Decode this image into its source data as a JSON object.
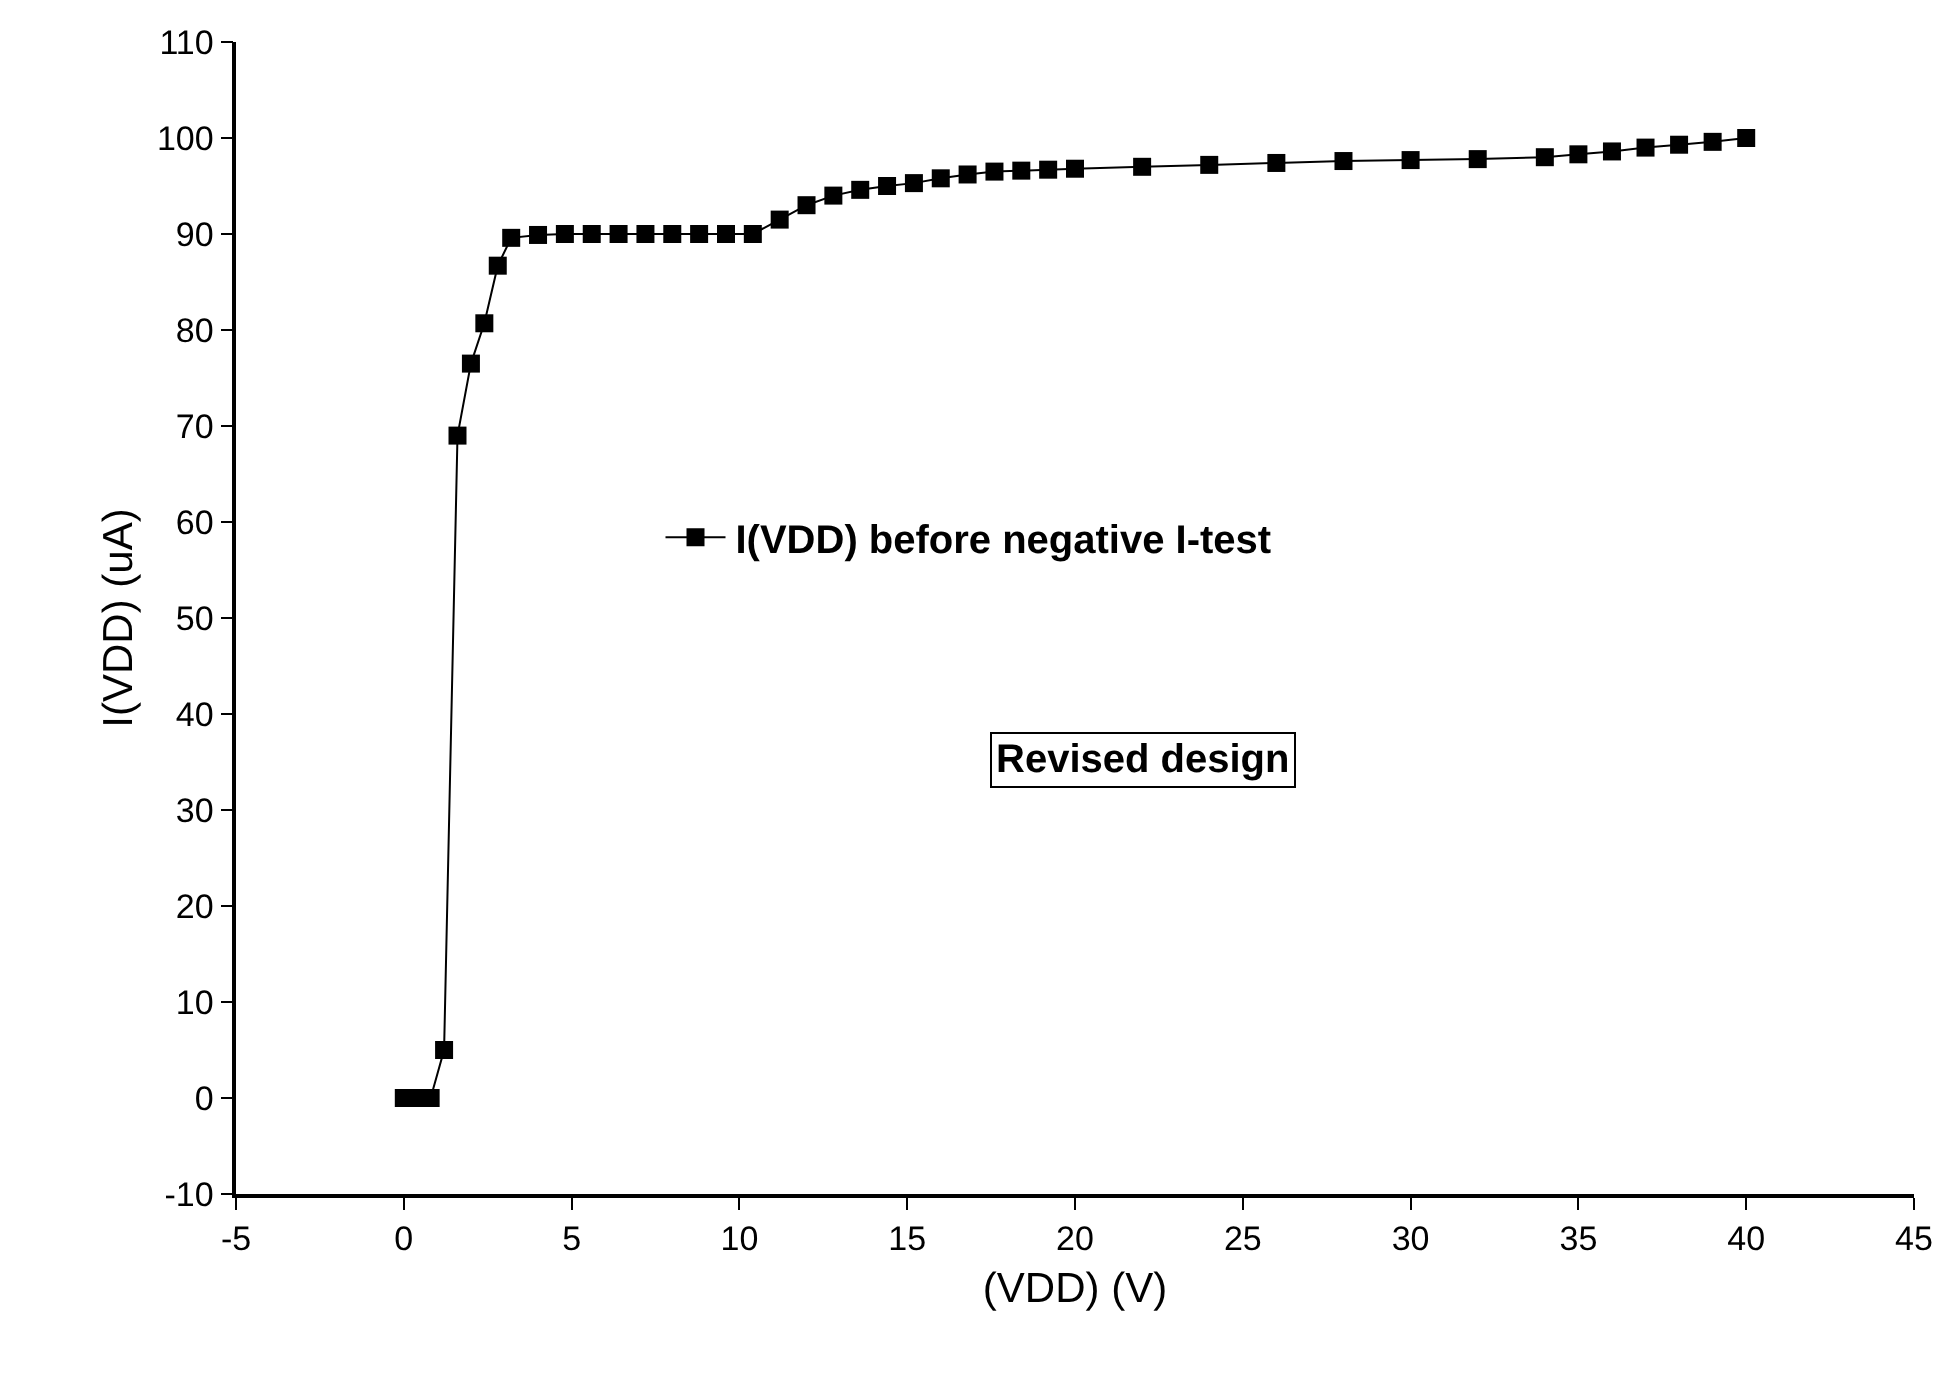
{
  "chart_data": {
    "type": "line",
    "xlabel": "(VDD) (V)",
    "ylabel": "I(VDD) (uA)",
    "x": [
      0,
      0.4,
      0.8,
      1.2,
      1.6,
      2.0,
      2.4,
      2.8,
      3.2,
      4.0,
      4.8,
      5.6,
      6.4,
      7.2,
      8.0,
      8.8,
      9.6,
      10.4,
      11.2,
      12.0,
      12.8,
      13.6,
      14.4,
      15.2,
      16.0,
      16.8,
      17.6,
      18.4,
      19.2,
      20,
      22,
      24,
      26,
      28,
      30,
      32,
      34,
      35,
      36,
      37,
      38,
      39,
      40
    ],
    "series": [
      {
        "name": "I(VDD) before negative I-test",
        "color": "#000000",
        "values": [
          0,
          0,
          0,
          5,
          69,
          76.5,
          80.7,
          86.7,
          89.6,
          89.9,
          90,
          90,
          90,
          90,
          90,
          90,
          90,
          90,
          91.5,
          93,
          94,
          94.6,
          95,
          95.3,
          95.8,
          96.2,
          96.5,
          96.6,
          96.7,
          96.8,
          97,
          97.2,
          97.4,
          97.6,
          97.7,
          97.8,
          98,
          98.3,
          98.6,
          99,
          99.3,
          99.6,
          100
        ]
      }
    ],
    "xlim": [
      -5,
      45
    ],
    "xticks": [
      -5,
      0,
      5,
      10,
      15,
      20,
      25,
      30,
      35,
      40,
      45
    ],
    "ylim": [
      -10,
      110
    ],
    "yticks": [
      -10,
      0,
      10,
      20,
      30,
      40,
      50,
      60,
      70,
      80,
      90,
      100,
      110
    ],
    "annotations": [
      "Revised design"
    ],
    "legend": "center",
    "marker": "square",
    "line_style": "solid"
  }
}
